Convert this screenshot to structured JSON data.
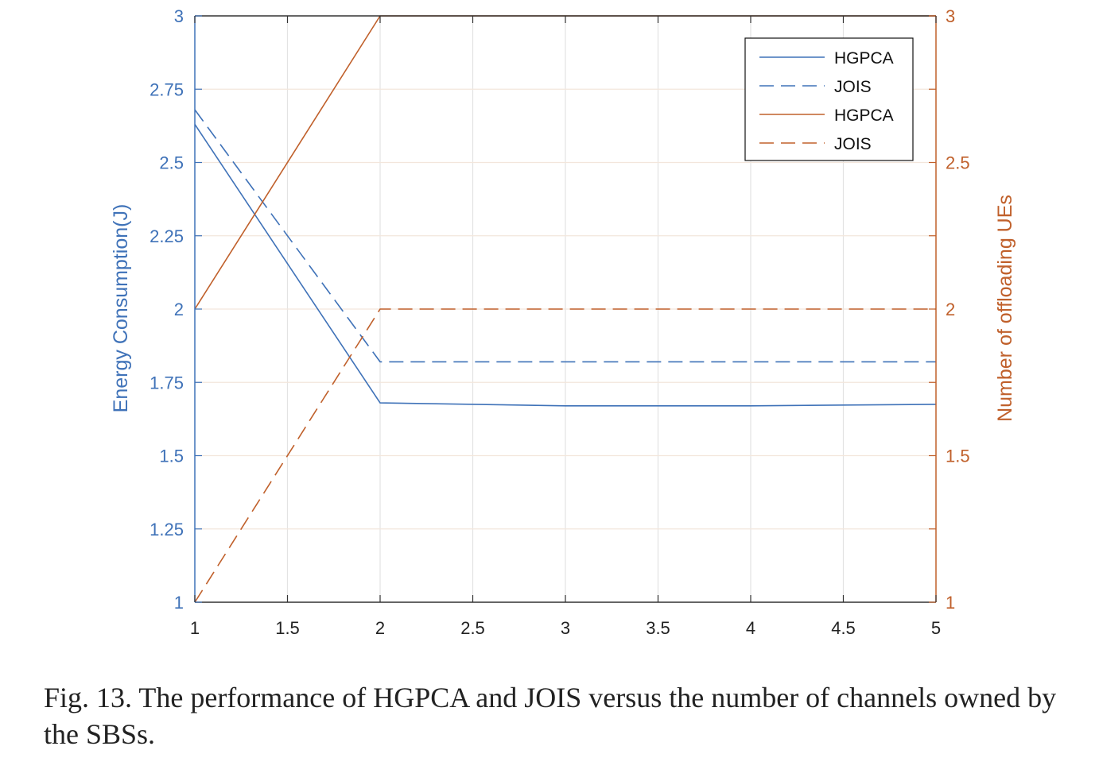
{
  "chart_data": {
    "type": "line",
    "x": [
      1,
      2,
      3,
      4,
      5
    ],
    "xlim": [
      1,
      5
    ],
    "xticks": [
      "1",
      "1.5",
      "2",
      "2.5",
      "3",
      "3.5",
      "4",
      "4.5",
      "5"
    ],
    "xlabel": "",
    "left_axis": {
      "label": "Energy Consumption(J)",
      "ylim": [
        1,
        3
      ],
      "ticks": [
        "1",
        "1.25",
        "1.5",
        "1.75",
        "2",
        "2.25",
        "2.5",
        "2.75",
        "3"
      ],
      "color": "#3f72b8"
    },
    "right_axis": {
      "label": "Number of offloading UEs",
      "ylim": [
        1,
        3
      ],
      "ticks": [
        "1",
        "1.5",
        "2",
        "2.5",
        "3"
      ],
      "color": "#c0602b"
    },
    "series": [
      {
        "name": "HGPCA",
        "axis": "left",
        "style": "solid",
        "color": "#3f72b8",
        "values": [
          2.63,
          1.68,
          1.67,
          1.67,
          1.675
        ]
      },
      {
        "name": "JOIS",
        "axis": "left",
        "style": "dashed",
        "color": "#3f72b8",
        "values": [
          2.68,
          1.82,
          1.82,
          1.82,
          1.82
        ]
      },
      {
        "name": "HGPCA",
        "axis": "right",
        "style": "solid",
        "color": "#c0602b",
        "values": [
          2,
          3,
          3,
          3,
          3
        ]
      },
      {
        "name": "JOIS",
        "axis": "right",
        "style": "dashed",
        "color": "#c0602b",
        "values": [
          1,
          2,
          2,
          2,
          2
        ]
      }
    ],
    "grid": true,
    "legend_position": "top-right"
  },
  "caption": "Fig. 13.   The performance of HGPCA and JOIS versus the number of channels owned by the SBSs."
}
